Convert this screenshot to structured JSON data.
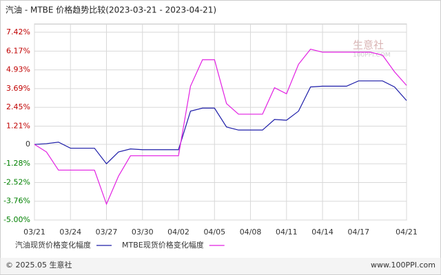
{
  "chart_data": {
    "type": "line",
    "title": "汽油 - MTBE 价格趋势比较(2023-03-21 - 2023-04-21)",
    "categories": [
      "03/21",
      null,
      null,
      "03/24",
      null,
      null,
      "03/27",
      null,
      null,
      "03/30",
      null,
      null,
      "04/02",
      null,
      null,
      "04/05",
      null,
      null,
      "04/08",
      null,
      null,
      "04/11",
      null,
      null,
      "04/14",
      null,
      null,
      "04/17",
      null,
      null,
      null,
      "04/21"
    ],
    "series": [
      {
        "name": "汽油现货价格变化幅度",
        "color": "#1c1ca8",
        "values": [
          0,
          0.05,
          0.15,
          -0.25,
          -0.25,
          -0.25,
          -1.28,
          -0.5,
          -0.3,
          -0.35,
          -0.35,
          -0.35,
          -0.35,
          2.2,
          2.4,
          2.4,
          1.15,
          0.95,
          0.95,
          0.95,
          1.65,
          1.6,
          2.2,
          3.8,
          3.85,
          3.85,
          3.85,
          4.2,
          4.2,
          4.2,
          3.8,
          2.9
        ]
      },
      {
        "name": "MTBE现货价格变化幅度",
        "color": "#e21ee2",
        "values": [
          0,
          -0.5,
          -1.7,
          -1.7,
          -1.7,
          -1.7,
          -3.95,
          -2.1,
          -0.75,
          -0.75,
          -0.75,
          -0.75,
          -0.75,
          3.85,
          5.6,
          5.6,
          2.7,
          2.0,
          2.0,
          2.0,
          3.75,
          3.35,
          5.3,
          6.3,
          6.1,
          6.1,
          6.1,
          6.1,
          6.1,
          5.9,
          4.8,
          3.9
        ]
      }
    ],
    "ylim": [
      -5,
      7.96
    ],
    "yticks": [
      {
        "value": 7.42,
        "label": "7.42%"
      },
      {
        "value": 6.17,
        "label": "6.17%"
      },
      {
        "value": 4.93,
        "label": "4.93%"
      },
      {
        "value": 3.69,
        "label": "3.69%"
      },
      {
        "value": 2.45,
        "label": "2.45%"
      },
      {
        "value": 1.21,
        "label": "1.21%"
      },
      0,
      {
        "value": -1.28,
        "label": "-1.28%"
      },
      {
        "value": -2.52,
        "label": "-2.52%"
      },
      {
        "value": -3.76,
        "label": "-3.76%"
      },
      {
        "value": -5,
        "label": "-5.00%"
      }
    ],
    "grid": true,
    "watermark": {
      "name": "生意社",
      "site": "100PPI.COM"
    },
    "footer": {
      "left": "© 2025.05 生意社",
      "right": "www.100PPI.com"
    }
  }
}
